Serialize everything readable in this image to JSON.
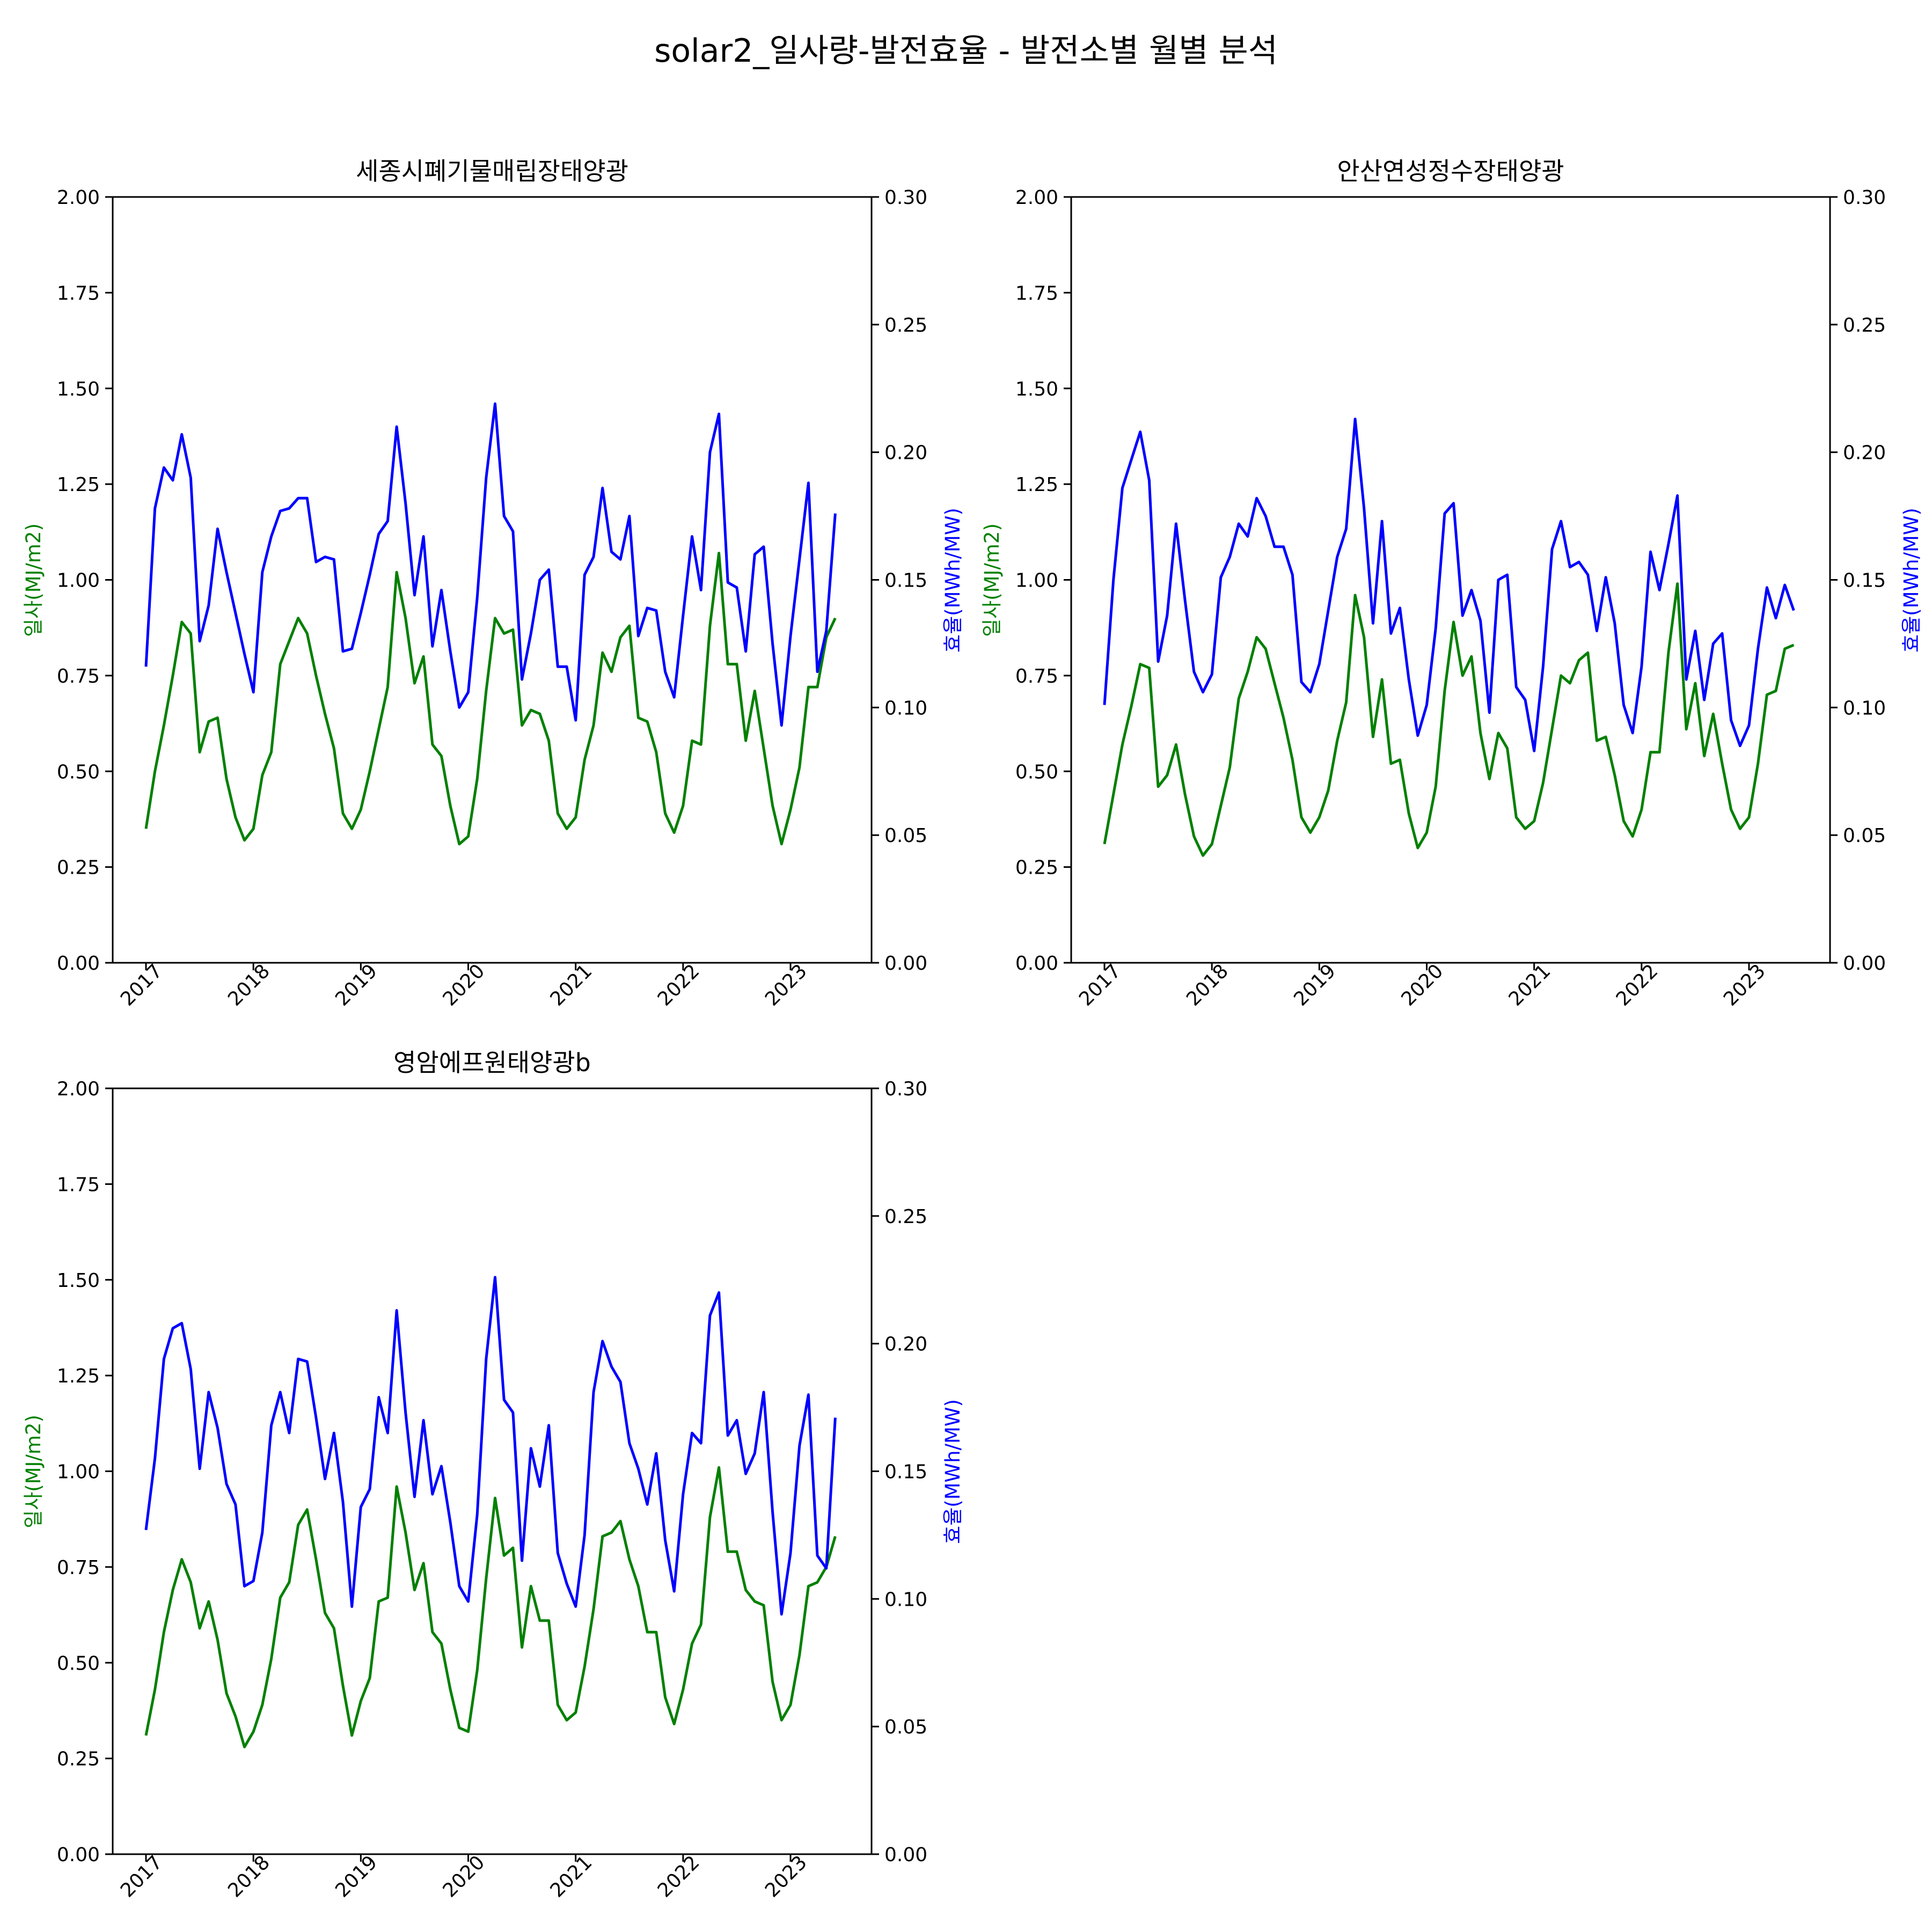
{
  "title": "solar2_일사량-발전효율 - 발전소별 월별 분석",
  "colors": {
    "irradiance": "#008000",
    "efficiency": "#0000ff",
    "axes": "#000000"
  },
  "chart_data": [
    {
      "type": "line",
      "title": "세종시폐기물매립장태양광",
      "ylabel": "일사(MJ/m2)",
      "y2label": "효율(MWh/MW)",
      "ylim": [
        0,
        2.0
      ],
      "y2lim": [
        0,
        0.3
      ],
      "yticks": [
        "0.00",
        "0.25",
        "0.50",
        "0.75",
        "1.00",
        "1.25",
        "1.50",
        "1.75",
        "2.00"
      ],
      "y2ticks": [
        "0.00",
        "0.05",
        "0.10",
        "0.15",
        "0.20",
        "0.25",
        "0.30"
      ],
      "xticks": [
        "2017",
        "2018",
        "2019",
        "2020",
        "2021",
        "2022",
        "2023"
      ],
      "x_start": "2017-01",
      "grid": false,
      "series": [
        {
          "name": "일사(MJ/m2)",
          "axis": "left",
          "values": [
            0.35,
            0.5,
            0.62,
            0.75,
            0.89,
            0.86,
            0.55,
            0.63,
            0.64,
            0.48,
            0.38,
            0.32,
            0.35,
            0.49,
            0.55,
            0.78,
            0.84,
            0.9,
            0.86,
            0.75,
            0.65,
            0.56,
            0.39,
            0.35,
            0.4,
            0.5,
            0.61,
            0.72,
            1.02,
            0.9,
            0.73,
            0.8,
            0.57,
            0.54,
            0.41,
            0.31,
            0.33,
            0.48,
            0.71,
            0.9,
            0.86,
            0.87,
            0.62,
            0.66,
            0.65,
            0.58,
            0.39,
            0.35,
            0.38,
            0.53,
            0.62,
            0.81,
            0.76,
            0.85,
            0.88,
            0.64,
            0.63,
            0.55,
            0.39,
            0.34,
            0.41,
            0.58,
            0.57,
            0.88,
            1.07,
            0.78,
            0.78,
            0.58,
            0.71,
            0.56,
            0.41,
            0.31,
            0.4,
            0.51,
            0.72,
            0.72,
            0.85,
            0.9
          ]
        },
        {
          "name": "효율(MWh/MW)",
          "axis": "right",
          "values": [
            0.116,
            0.178,
            0.194,
            0.189,
            0.207,
            0.19,
            0.126,
            0.14,
            0.17,
            0.153,
            0.137,
            0.121,
            0.106,
            0.153,
            0.167,
            0.177,
            0.178,
            0.182,
            0.182,
            0.157,
            0.159,
            0.158,
            0.122,
            0.123,
            0.137,
            0.152,
            0.168,
            0.173,
            0.21,
            0.18,
            0.144,
            0.167,
            0.124,
            0.146,
            0.122,
            0.1,
            0.106,
            0.143,
            0.19,
            0.219,
            0.175,
            0.169,
            0.111,
            0.129,
            0.15,
            0.154,
            0.116,
            0.116,
            0.095,
            0.152,
            0.159,
            0.186,
            0.161,
            0.158,
            0.175,
            0.128,
            0.139,
            0.138,
            0.114,
            0.104,
            0.136,
            0.167,
            0.146,
            0.2,
            0.215,
            0.149,
            0.147,
            0.122,
            0.16,
            0.163,
            0.125,
            0.093,
            0.128,
            0.158,
            0.188,
            0.114,
            0.13,
            0.176
          ]
        }
      ]
    },
    {
      "type": "line",
      "title": "안산연성정수장태양광",
      "ylabel": "일사(MJ/m2)",
      "y2label": "효율(MWh/MW)",
      "ylim": [
        0,
        2.0
      ],
      "y2lim": [
        0,
        0.3
      ],
      "yticks": [
        "0.00",
        "0.25",
        "0.50",
        "0.75",
        "1.00",
        "1.25",
        "1.50",
        "1.75",
        "2.00"
      ],
      "y2ticks": [
        "0.00",
        "0.05",
        "0.10",
        "0.15",
        "0.20",
        "0.25",
        "0.30"
      ],
      "xticks": [
        "2017",
        "2018",
        "2019",
        "2020",
        "2021",
        "2022",
        "2023"
      ],
      "x_start": "2017-01",
      "grid": false,
      "series": [
        {
          "name": "일사(MJ/m2)",
          "axis": "left",
          "values": [
            0.31,
            0.44,
            0.57,
            0.67,
            0.78,
            0.77,
            0.46,
            0.49,
            0.57,
            0.44,
            0.33,
            0.28,
            0.31,
            0.41,
            0.51,
            0.69,
            0.76,
            0.85,
            0.82,
            0.73,
            0.64,
            0.53,
            0.38,
            0.34,
            0.38,
            0.45,
            0.58,
            0.68,
            0.96,
            0.85,
            0.59,
            0.74,
            0.52,
            0.53,
            0.39,
            0.3,
            0.34,
            0.46,
            0.71,
            0.89,
            0.75,
            0.8,
            0.6,
            0.48,
            0.6,
            0.56,
            0.38,
            0.35,
            0.37,
            0.47,
            0.61,
            0.75,
            0.73,
            0.79,
            0.81,
            0.58,
            0.59,
            0.49,
            0.37,
            0.33,
            0.4,
            0.55,
            0.55,
            0.81,
            0.99,
            0.61,
            0.73,
            0.54,
            0.65,
            0.52,
            0.4,
            0.35,
            0.38,
            0.52,
            0.7,
            0.71,
            0.82,
            0.83
          ]
        },
        {
          "name": "효율(MWh/MW)",
          "axis": "right",
          "values": [
            0.101,
            0.15,
            0.186,
            0.197,
            0.208,
            0.189,
            0.118,
            0.136,
            0.172,
            0.142,
            0.114,
            0.106,
            0.113,
            0.151,
            0.159,
            0.172,
            0.167,
            0.182,
            0.175,
            0.163,
            0.163,
            0.152,
            0.11,
            0.106,
            0.117,
            0.138,
            0.159,
            0.17,
            0.213,
            0.178,
            0.133,
            0.173,
            0.129,
            0.139,
            0.111,
            0.089,
            0.101,
            0.131,
            0.176,
            0.18,
            0.136,
            0.146,
            0.134,
            0.098,
            0.15,
            0.152,
            0.108,
            0.103,
            0.083,
            0.116,
            0.162,
            0.173,
            0.155,
            0.157,
            0.152,
            0.13,
            0.151,
            0.133,
            0.101,
            0.09,
            0.116,
            0.161,
            0.146,
            0.164,
            0.183,
            0.111,
            0.13,
            0.103,
            0.125,
            0.129,
            0.095,
            0.085,
            0.093,
            0.123,
            0.147,
            0.135,
            0.148,
            0.138
          ]
        }
      ]
    },
    {
      "type": "line",
      "title": "영암에프원태양광b",
      "ylabel": "일사(MJ/m2)",
      "y2label": "효율(MWh/MW)",
      "ylim": [
        0,
        2.0
      ],
      "y2lim": [
        0,
        0.3
      ],
      "yticks": [
        "0.00",
        "0.25",
        "0.50",
        "0.75",
        "1.00",
        "1.25",
        "1.50",
        "1.75",
        "2.00"
      ],
      "y2ticks": [
        "0.00",
        "0.05",
        "0.10",
        "0.15",
        "0.20",
        "0.25",
        "0.30"
      ],
      "xticks": [
        "2017",
        "2018",
        "2019",
        "2020",
        "2021",
        "2022",
        "2023"
      ],
      "x_start": "2017-01",
      "grid": false,
      "series": [
        {
          "name": "일사(MJ/m2)",
          "axis": "left",
          "values": [
            0.31,
            0.43,
            0.58,
            0.69,
            0.77,
            0.71,
            0.59,
            0.66,
            0.56,
            0.42,
            0.36,
            0.28,
            0.32,
            0.39,
            0.51,
            0.67,
            0.71,
            0.86,
            0.9,
            0.77,
            0.63,
            0.59,
            0.44,
            0.31,
            0.4,
            0.46,
            0.66,
            0.67,
            0.96,
            0.84,
            0.69,
            0.76,
            0.58,
            0.55,
            0.43,
            0.33,
            0.32,
            0.48,
            0.72,
            0.93,
            0.78,
            0.8,
            0.54,
            0.7,
            0.61,
            0.61,
            0.39,
            0.35,
            0.37,
            0.49,
            0.64,
            0.83,
            0.84,
            0.87,
            0.77,
            0.7,
            0.58,
            0.58,
            0.41,
            0.34,
            0.43,
            0.55,
            0.6,
            0.88,
            1.01,
            0.79,
            0.79,
            0.69,
            0.66,
            0.65,
            0.45,
            0.35,
            0.39,
            0.52,
            0.7,
            0.71,
            0.75,
            0.83
          ]
        },
        {
          "name": "효율(MWh/MW)",
          "axis": "right",
          "values": [
            0.127,
            0.155,
            0.194,
            0.206,
            0.208,
            0.19,
            0.151,
            0.181,
            0.167,
            0.145,
            0.137,
            0.105,
            0.107,
            0.126,
            0.168,
            0.181,
            0.165,
            0.194,
            0.193,
            0.171,
            0.147,
            0.165,
            0.138,
            0.097,
            0.136,
            0.143,
            0.179,
            0.165,
            0.213,
            0.173,
            0.14,
            0.17,
            0.141,
            0.152,
            0.13,
            0.105,
            0.099,
            0.133,
            0.194,
            0.226,
            0.178,
            0.173,
            0.115,
            0.159,
            0.144,
            0.168,
            0.118,
            0.106,
            0.097,
            0.125,
            0.181,
            0.201,
            0.191,
            0.185,
            0.161,
            0.151,
            0.137,
            0.157,
            0.123,
            0.103,
            0.141,
            0.165,
            0.161,
            0.211,
            0.22,
            0.164,
            0.17,
            0.149,
            0.157,
            0.181,
            0.134,
            0.094,
            0.118,
            0.16,
            0.18,
            0.117,
            0.112,
            0.171
          ]
        }
      ]
    }
  ]
}
